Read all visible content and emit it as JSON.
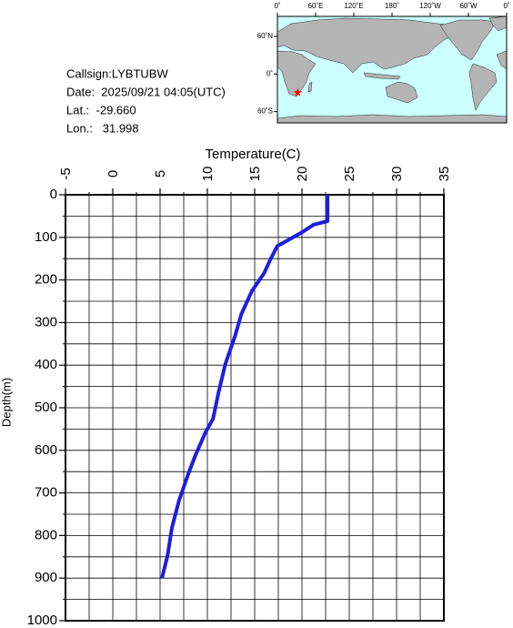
{
  "info": {
    "callsign": "Callsign:LYBTUBW",
    "date": "Date:  2025/09/21 04:05(UTC)",
    "lat": "Lat.:  -29.660",
    "lon": "Lon.:   31.998"
  },
  "map": {
    "lonlim": [
      0,
      360
    ],
    "latlim": [
      -78,
      92
    ],
    "lonticks": [
      {
        "value": 0,
        "label": "0˚"
      },
      {
        "value": 60,
        "label": "60˚E"
      },
      {
        "value": 120,
        "label": "120˚E"
      },
      {
        "value": 180,
        "label": "180˚"
      },
      {
        "value": 240,
        "label": "120˚W"
      },
      {
        "value": 300,
        "label": "60˚W"
      },
      {
        "value": 360,
        "label": "0˚"
      }
    ],
    "latticks": [
      {
        "value": 60,
        "label": "60˚N"
      },
      {
        "value": 0,
        "label": "0˚"
      },
      {
        "value": -60,
        "label": "60˚S"
      }
    ],
    "station": {
      "lat": -29.66,
      "lon": 31.998,
      "color": "#ff0000"
    }
  },
  "chart_data": {
    "type": "line",
    "x_label": "Temperature(C)",
    "y_label": "Depth(m)",
    "xlim": [
      -5,
      35
    ],
    "xticks": [
      -5,
      0,
      5,
      10,
      15,
      20,
      25,
      30,
      35
    ],
    "ylim": [
      0,
      1000
    ],
    "yticks": [
      0,
      100,
      200,
      300,
      400,
      500,
      600,
      700,
      800,
      900,
      1000
    ],
    "y_inverted": true,
    "grid": true,
    "xgridticks": [
      -2.5,
      2.5,
      7.5,
      12.5,
      17.5,
      22.5,
      27.5,
      32.5
    ],
    "ygridticks": [
      50,
      150,
      250,
      350,
      450,
      550,
      650,
      750,
      850,
      950
    ],
    "series": [
      {
        "color": "#1e1ee0",
        "x": [
          22.7,
          22.7,
          21.25,
          20.0,
          18.65,
          17.4,
          16.7,
          16.0,
          14.7,
          13.6,
          12.9,
          11.9,
          11.2,
          10.6,
          9.8,
          8.75,
          8.0,
          7.0,
          6.25,
          5.8,
          5.2
        ],
        "values": [
          0,
          62,
          70,
          88,
          105,
          120,
          150,
          184,
          226,
          280,
          333,
          397,
          462,
          526,
          558,
          611,
          654,
          718,
          782,
          846,
          900
        ]
      }
    ]
  }
}
